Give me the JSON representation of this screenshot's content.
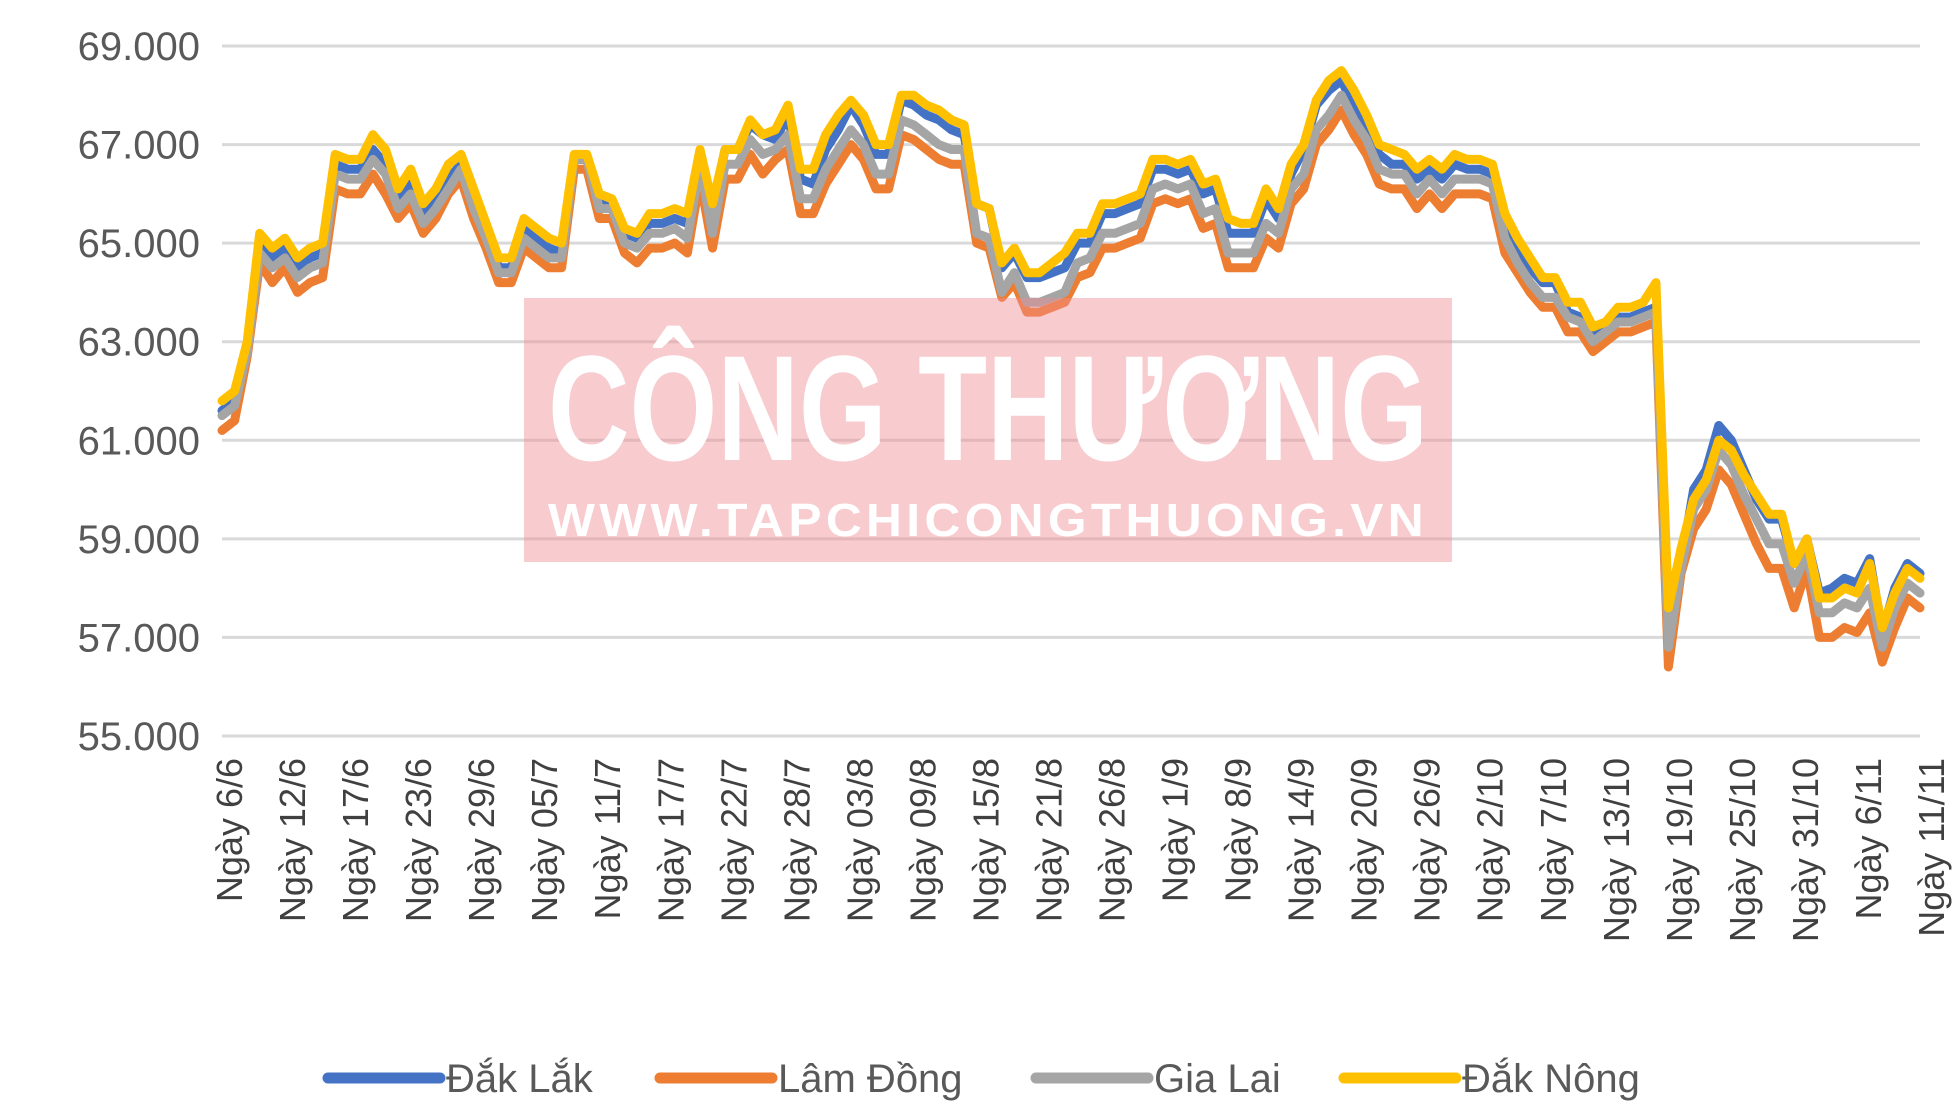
{
  "chart_data": {
    "type": "line",
    "title": "",
    "xlabel": "",
    "ylabel": "",
    "ylim": [
      55000,
      69000
    ],
    "yticks": [
      "55.000",
      "57.000",
      "59.000",
      "61.000",
      "63.000",
      "65.000",
      "67.000",
      "69.000"
    ],
    "ytick_values": [
      55000,
      57000,
      59000,
      61000,
      63000,
      65000,
      67000,
      69000
    ],
    "grid": "horizontal",
    "legend_position": "bottom",
    "x_labels": [
      "Ngày 6/6",
      "Ngày 12/6",
      "Ngày 17/6",
      "Ngày 23/6",
      "Ngày 29/6",
      "Ngày 05/7",
      "Ngày 11/7",
      "Ngày 17/7",
      "Ngày 22/7",
      "Ngày 28/7",
      "Ngày 03/8",
      "Ngày 09/8",
      "Ngày 15/8",
      "Ngày 21/8",
      "Ngày 26/8",
      "Ngày 1/9",
      "Ngày 8/9",
      "Ngày 14/9",
      "Ngày 20/9",
      "Ngày 26/9",
      "Ngày 2/10",
      "Ngày 7/10",
      "Ngày 13/10",
      "Ngày 19/10",
      "Ngày 25/10",
      "Ngày 31/10",
      "Ngày 6/11",
      "Ngày 11/11"
    ],
    "series": [
      {
        "name": "Đắk Lắk",
        "color": "#4472C4",
        "values": [
          61600,
          61800,
          62900,
          65000,
          64700,
          64900,
          64500,
          64700,
          64800,
          66600,
          66500,
          66500,
          66900,
          66600,
          65900,
          66200,
          65600,
          65900,
          66300,
          66600,
          65900,
          65300,
          64500,
          64500,
          65300,
          65100,
          64900,
          64800,
          66700,
          66700,
          65900,
          65800,
          65200,
          65100,
          65400,
          65400,
          65500,
          65400,
          66800,
          65700,
          66900,
          66900,
          67400,
          67200,
          67100,
          67600,
          66300,
          66200,
          66900,
          67300,
          67800,
          67400,
          66800,
          66800,
          67900,
          67800,
          67600,
          67500,
          67300,
          67200,
          65800,
          65700,
          64500,
          64800,
          64300,
          64300,
          64400,
          64500,
          65000,
          65000,
          65600,
          65600,
          65700,
          65800,
          66500,
          66500,
          66400,
          66500,
          66000,
          66100,
          65200,
          65200,
          65200,
          65900,
          65500,
          66400,
          66900,
          67800,
          68100,
          68300,
          67800,
          67400,
          66800,
          66600,
          66600,
          66300,
          66500,
          66300,
          66600,
          66500,
          66500,
          66400,
          65400,
          64900,
          64500,
          64200,
          64200,
          63600,
          63500,
          63100,
          63300,
          63500,
          63500,
          63600,
          63700,
          57100,
          58500,
          60000,
          60400,
          61300,
          61000,
          60400,
          59800,
          59400,
          59400,
          58500,
          59000,
          57900,
          58000,
          58200,
          58100,
          58600,
          57100,
          58000,
          58500,
          58300
        ]
      },
      {
        "name": "Lâm Đồng",
        "color": "#ED7D31",
        "values": [
          61200,
          61400,
          62700,
          64600,
          64200,
          64500,
          64000,
          64200,
          64300,
          66100,
          66000,
          66000,
          66400,
          66000,
          65500,
          65800,
          65200,
          65500,
          66000,
          66300,
          65500,
          64900,
          64200,
          64200,
          64900,
          64700,
          64500,
          64500,
          66500,
          66500,
          65500,
          65500,
          64800,
          64600,
          64900,
          64900,
          65000,
          64800,
          66300,
          64900,
          66300,
          66300,
          66800,
          66400,
          66700,
          66900,
          65600,
          65600,
          66200,
          66600,
          67000,
          66700,
          66100,
          66100,
          67200,
          67100,
          66900,
          66700,
          66600,
          66600,
          65000,
          64900,
          63900,
          64200,
          63600,
          63600,
          63700,
          63800,
          64300,
          64400,
          64900,
          64900,
          65000,
          65100,
          65800,
          65900,
          65800,
          65900,
          65300,
          65400,
          64500,
          64500,
          64500,
          65100,
          64900,
          65800,
          66100,
          67000,
          67300,
          67700,
          67200,
          66800,
          66200,
          66100,
          66100,
          65700,
          66000,
          65700,
          66000,
          66000,
          66000,
          65900,
          64800,
          64400,
          64000,
          63700,
          63700,
          63200,
          63200,
          62800,
          63000,
          63200,
          63200,
          63300,
          63400,
          56400,
          58300,
          59200,
          59600,
          60400,
          60100,
          59500,
          58900,
          58400,
          58400,
          57600,
          58400,
          57000,
          57000,
          57200,
          57100,
          57500,
          56500,
          57200,
          57800,
          57600
        ]
      },
      {
        "name": "Gia Lai",
        "color": "#A5A5A5",
        "values": [
          61500,
          61700,
          62800,
          64800,
          64500,
          64700,
          64300,
          64500,
          64600,
          66400,
          66300,
          66300,
          66700,
          66400,
          65700,
          66000,
          65400,
          65700,
          66100,
          66500,
          65700,
          65100,
          64400,
          64400,
          65100,
          64900,
          64700,
          64700,
          66700,
          66700,
          65700,
          65700,
          65000,
          64900,
          65200,
          65200,
          65300,
          65100,
          66600,
          65200,
          66600,
          66600,
          67100,
          66800,
          66900,
          67200,
          65900,
          65900,
          66500,
          66900,
          67300,
          67000,
          66400,
          66400,
          67500,
          67400,
          67200,
          67000,
          66900,
          66900,
          65200,
          65100,
          64000,
          64400,
          63800,
          63800,
          63900,
          64000,
          64600,
          64700,
          65200,
          65200,
          65300,
          65400,
          66100,
          66200,
          66100,
          66200,
          65600,
          65700,
          64800,
          64800,
          64800,
          65400,
          65200,
          66100,
          66400,
          67300,
          67600,
          68000,
          67500,
          67100,
          66500,
          66400,
          66400,
          66000,
          66300,
          66000,
          66300,
          66300,
          66300,
          66200,
          65100,
          64600,
          64200,
          63900,
          63900,
          63500,
          63400,
          63000,
          63200,
          63400,
          63400,
          63500,
          63600,
          56800,
          58400,
          59600,
          60000,
          60800,
          60500,
          59900,
          59400,
          58900,
          58900,
          58100,
          58700,
          57500,
          57500,
          57700,
          57600,
          58000,
          56800,
          57600,
          58100,
          57900
        ]
      },
      {
        "name": "Đắk Nông",
        "color": "#FFC000",
        "values": [
          61800,
          62000,
          63000,
          65200,
          64900,
          65100,
          64700,
          64900,
          65000,
          66800,
          66700,
          66700,
          67200,
          66900,
          66100,
          66500,
          65800,
          66100,
          66600,
          66800,
          66100,
          65400,
          64700,
          64700,
          65500,
          65300,
          65100,
          65000,
          66800,
          66800,
          66000,
          65900,
          65300,
          65200,
          65600,
          65600,
          65700,
          65600,
          66900,
          65800,
          66900,
          66900,
          67500,
          67200,
          67300,
          67800,
          66500,
          66500,
          67200,
          67600,
          67900,
          67600,
          67000,
          67000,
          68000,
          68000,
          67800,
          67700,
          67500,
          67400,
          65800,
          65700,
          64600,
          64900,
          64400,
          64400,
          64600,
          64800,
          65200,
          65200,
          65800,
          65800,
          65900,
          66000,
          66700,
          66700,
          66600,
          66700,
          66200,
          66300,
          65500,
          65400,
          65400,
          66100,
          65700,
          66600,
          67000,
          67900,
          68300,
          68500,
          68100,
          67600,
          67000,
          66900,
          66800,
          66500,
          66700,
          66500,
          66800,
          66700,
          66700,
          66600,
          65600,
          65100,
          64700,
          64300,
          64300,
          63800,
          63800,
          63300,
          63400,
          63700,
          63700,
          63800,
          64200,
          57600,
          58800,
          59800,
          60200,
          61000,
          60800,
          60300,
          59900,
          59500,
          59500,
          58500,
          59000,
          57800,
          57800,
          58000,
          57900,
          58500,
          57200,
          57900,
          58400,
          58200
        ]
      }
    ]
  },
  "watermark": {
    "title": "CÔNG THƯƠNG",
    "url": "WWW.TAPCHICONGTHUONG.VN"
  }
}
